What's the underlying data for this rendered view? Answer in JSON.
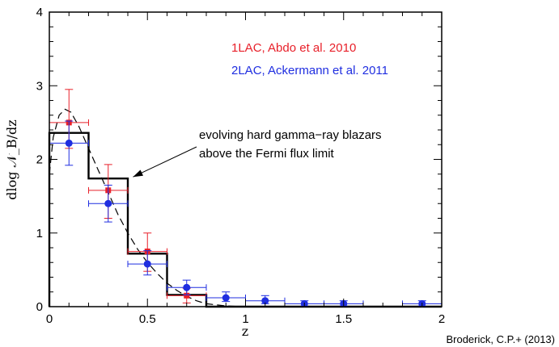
{
  "chart_data": {
    "type": "scatter",
    "xlabel": "z",
    "ylabel": "dlog 𝒩_B/dz",
    "xlim": [
      0,
      2
    ],
    "ylim": [
      0,
      4
    ],
    "x_ticks": [
      "0",
      "0.5",
      "1",
      "1.5",
      "2"
    ],
    "y_ticks": [
      "0",
      "1",
      "2",
      "3",
      "4"
    ],
    "series": [
      {
        "name": "1LAC, Abdo et al. 2010",
        "color": "#e8202a",
        "marker": "square",
        "points": [
          {
            "x": 0.1,
            "y": 2.5,
            "xerr": 0.1,
            "yerr_lo": 0.35,
            "yerr_hi": 0.45
          },
          {
            "x": 0.3,
            "y": 1.58,
            "xerr": 0.1,
            "yerr_lo": 0.38,
            "yerr_hi": 0.35
          },
          {
            "x": 0.5,
            "y": 0.75,
            "xerr": 0.1,
            "yerr_lo": 0.27,
            "yerr_hi": 0.25
          },
          {
            "x": 0.7,
            "y": 0.15,
            "xerr": 0.1,
            "yerr_lo": 0.1,
            "yerr_hi": 0.1
          }
        ]
      },
      {
        "name": "2LAC, Ackermann et al. 2011",
        "color": "#1f2ee0",
        "marker": "circle",
        "points": [
          {
            "x": 0.1,
            "y": 2.22,
            "xerr": 0.1,
            "yerr_lo": 0.3,
            "yerr_hi": 0.3
          },
          {
            "x": 0.3,
            "y": 1.4,
            "xerr": 0.1,
            "yerr_lo": 0.25,
            "yerr_hi": 0.25
          },
          {
            "x": 0.5,
            "y": 0.58,
            "xerr": 0.1,
            "yerr_lo": 0.15,
            "yerr_hi": 0.18
          },
          {
            "x": 0.7,
            "y": 0.26,
            "xerr": 0.1,
            "yerr_lo": 0.1,
            "yerr_hi": 0.1
          },
          {
            "x": 0.9,
            "y": 0.12,
            "xerr": 0.1,
            "yerr_lo": 0.05,
            "yerr_hi": 0.08
          },
          {
            "x": 1.1,
            "y": 0.08,
            "xerr": 0.1,
            "yerr_lo": 0.04,
            "yerr_hi": 0.07
          },
          {
            "x": 1.3,
            "y": 0.04,
            "xerr": 0.1,
            "yerr_lo": 0.03,
            "yerr_hi": 0.04
          },
          {
            "x": 1.5,
            "y": 0.04,
            "xerr": 0.1,
            "yerr_lo": 0.03,
            "yerr_hi": 0.04
          },
          {
            "x": 1.9,
            "y": 0.04,
            "xerr": 0.1,
            "yerr_lo": 0.03,
            "yerr_hi": 0.04
          }
        ]
      }
    ],
    "model_histogram": {
      "color": "#000000",
      "bins": [
        {
          "x0": 0.0,
          "x1": 0.2,
          "y": 2.36
        },
        {
          "x0": 0.2,
          "x1": 0.4,
          "y": 1.74
        },
        {
          "x0": 0.4,
          "x1": 0.6,
          "y": 0.72
        },
        {
          "x0": 0.6,
          "x1": 0.8,
          "y": 0.16
        },
        {
          "x0": 0.8,
          "x1": 2.0,
          "y": 0.0
        }
      ]
    },
    "model_curve": {
      "style": "dashed",
      "points": [
        [
          0.0,
          1.8
        ],
        [
          0.02,
          2.3
        ],
        [
          0.05,
          2.6
        ],
        [
          0.08,
          2.68
        ],
        [
          0.11,
          2.64
        ],
        [
          0.15,
          2.45
        ],
        [
          0.2,
          2.15
        ],
        [
          0.25,
          1.85
        ],
        [
          0.3,
          1.55
        ],
        [
          0.35,
          1.25
        ],
        [
          0.4,
          1.0
        ],
        [
          0.45,
          0.78
        ],
        [
          0.5,
          0.6
        ],
        [
          0.55,
          0.45
        ],
        [
          0.6,
          0.32
        ],
        [
          0.65,
          0.22
        ],
        [
          0.7,
          0.14
        ],
        [
          0.75,
          0.08
        ],
        [
          0.8,
          0.04
        ],
        [
          0.9,
          0.01
        ],
        [
          1.0,
          0.0
        ],
        [
          2.0,
          0.0
        ]
      ]
    },
    "annotation": {
      "lines": [
        "evolving hard gamma−ray blazars",
        "above the Fermi flux limit"
      ],
      "arrow_to": [
        0.41,
        1.74
      ]
    },
    "credit": "Broderick, C.P.+ (2013)"
  }
}
